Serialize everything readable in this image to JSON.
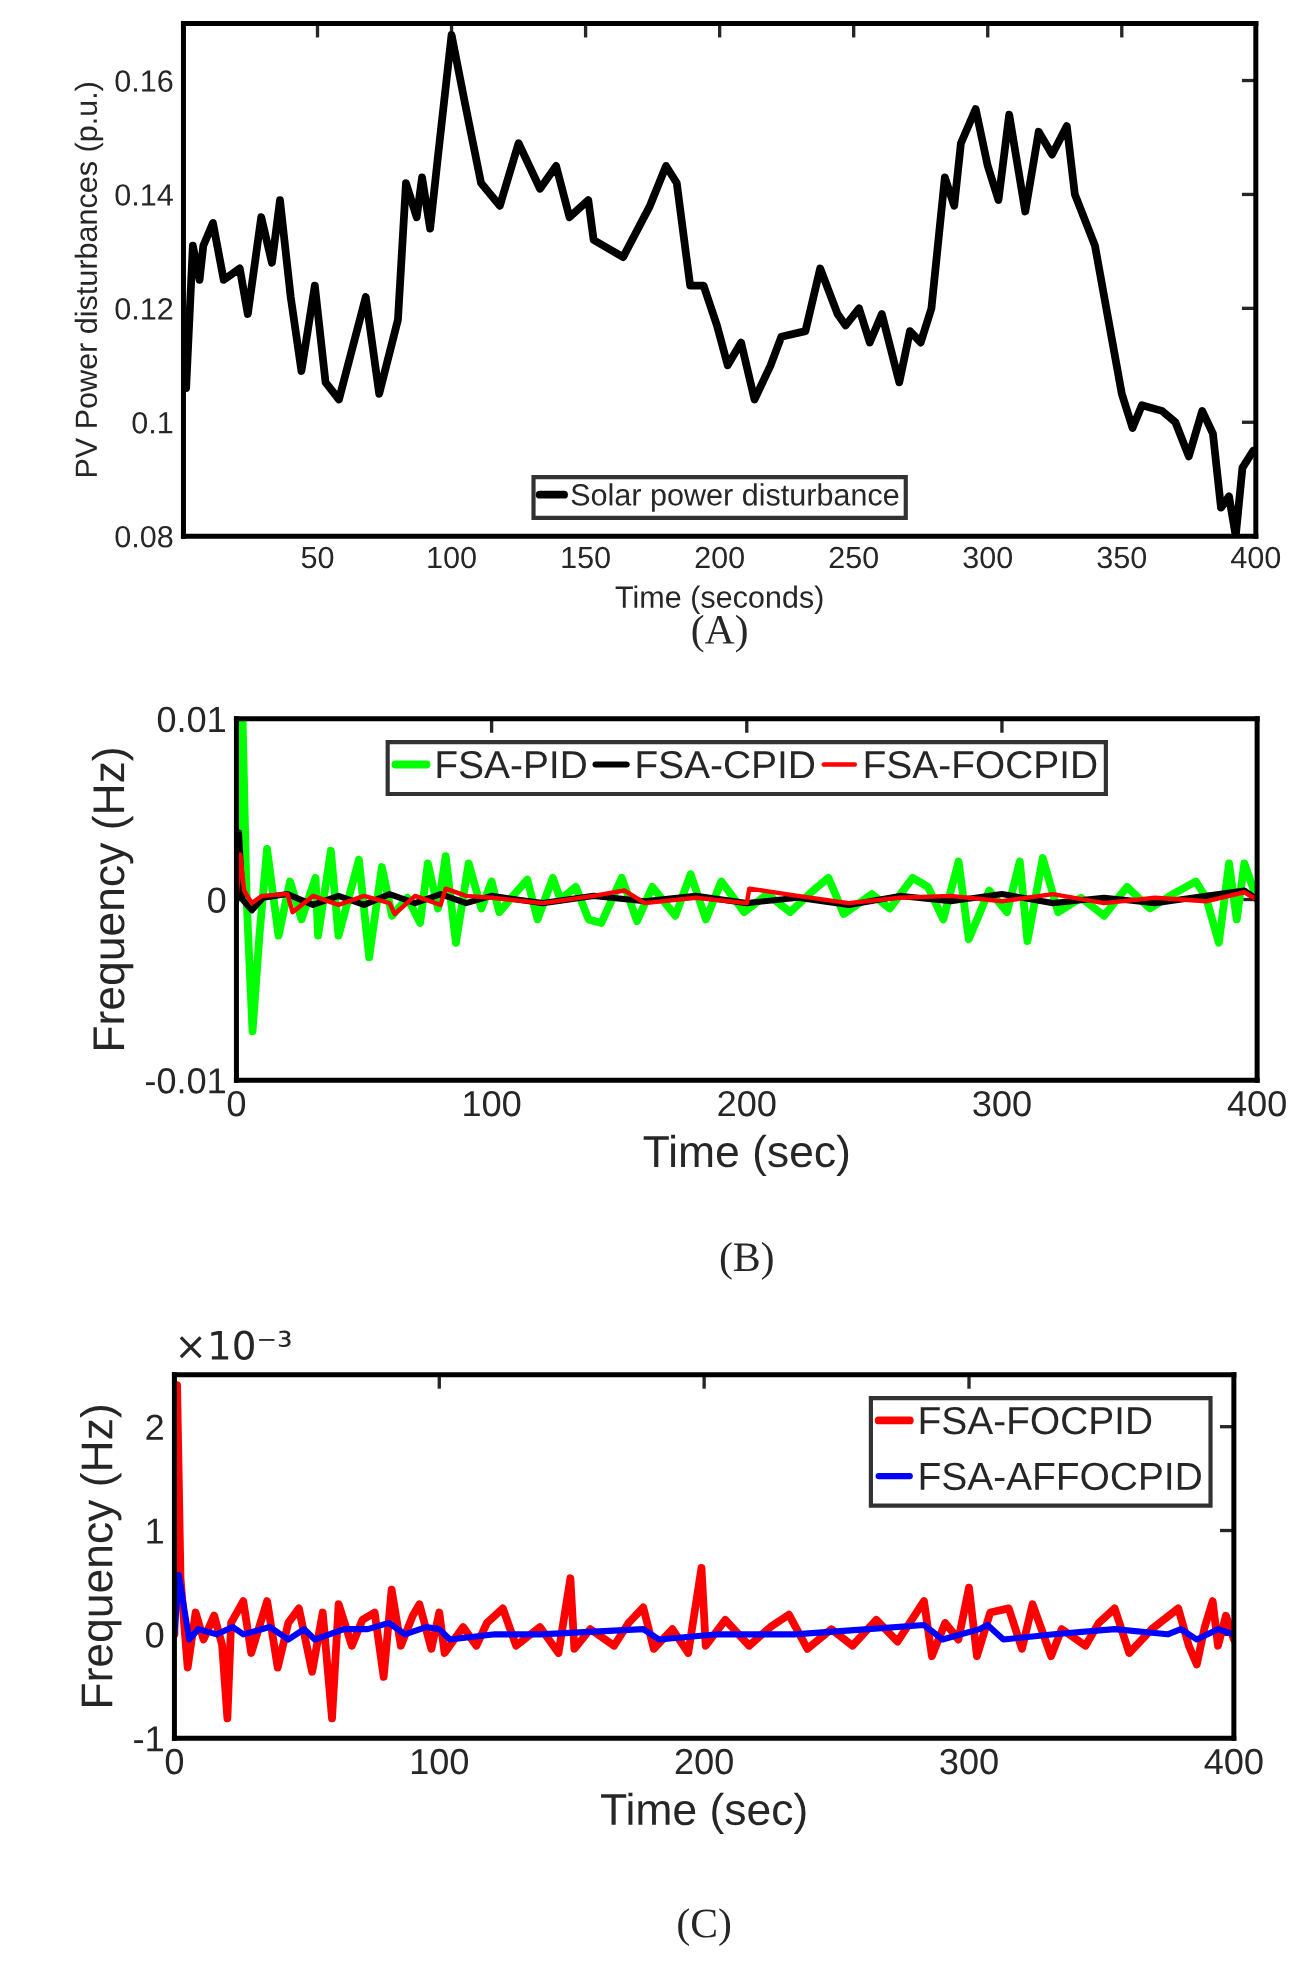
{
  "chart_data": [
    {
      "type": "line",
      "xlabel": "Time (seconds)",
      "ylabel": "PV Power disturbances (p.u.)",
      "xlim": [
        0,
        400
      ],
      "xticks": [
        50,
        100,
        150,
        200,
        250,
        300,
        350,
        400
      ],
      "ylim": [
        0.08,
        0.17
      ],
      "yticks": [
        0.08,
        0.1,
        0.12,
        0.14,
        0.16
      ],
      "legend": "bottom",
      "grid": false,
      "annotations": [
        "(A)"
      ],
      "series": [
        {
          "name": "Solar power disturbance",
          "color": "#000000",
          "x": [
            1,
            3.5,
            6,
            7.4,
            11,
            15,
            21,
            24,
            29,
            33,
            36,
            40,
            44,
            49,
            53,
            58,
            63,
            68,
            73,
            80,
            83,
            87,
            89,
            92,
            95,
            100,
            105,
            111,
            118,
            125,
            133,
            139,
            144,
            151,
            153,
            164,
            174,
            180,
            184,
            189,
            194,
            199,
            203,
            208,
            213,
            219,
            223,
            232,
            237.5,
            244,
            247,
            252,
            256,
            260.5,
            267,
            271,
            275,
            279,
            284,
            287.5,
            290,
            295.5,
            300,
            304,
            308,
            314,
            319,
            324,
            329.5,
            332.5,
            340,
            345,
            350,
            354,
            357.5,
            365,
            370,
            375,
            380,
            384,
            387,
            390,
            392.5,
            395,
            399
          ],
          "values": [
            0.106,
            0.131,
            0.125,
            0.131,
            0.135,
            0.125,
            0.127,
            0.119,
            0.136,
            0.128,
            0.139,
            0.122,
            0.109,
            0.124,
            0.107,
            0.104,
            0.113,
            0.122,
            0.105,
            0.118,
            0.142,
            0.136,
            0.143,
            0.134,
            0.147,
            0.168,
            0.156,
            0.142,
            0.138,
            0.149,
            0.141,
            0.145,
            0.136,
            0.139,
            0.132,
            0.129,
            0.138,
            0.145,
            0.142,
            0.124,
            0.124,
            0.117,
            0.11,
            0.114,
            0.104,
            0.11,
            0.115,
            0.116,
            0.127,
            0.119,
            0.117,
            0.12,
            0.114,
            0.119,
            0.107,
            0.116,
            0.114,
            0.12,
            0.143,
            0.138,
            0.149,
            0.155,
            0.145,
            0.139,
            0.154,
            0.137,
            0.151,
            0.147,
            0.152,
            0.14,
            0.131,
            0.118,
            0.105,
            0.099,
            0.103,
            0.102,
            0.1,
            0.094,
            0.102,
            0.098,
            0.085,
            0.087,
            0.08,
            0.092,
            0.095
          ]
        }
      ]
    },
    {
      "type": "line",
      "xlabel": "Time (sec)",
      "ylabel": "Frequency (Hz)",
      "xlim": [
        0,
        400
      ],
      "xticks": [
        0,
        100,
        200,
        300,
        400
      ],
      "ylim": [
        -0.01,
        0.01
      ],
      "yticks": [
        -0.01,
        0,
        0.01
      ],
      "legend": "top",
      "grid": false,
      "annotations": [
        "(B)"
      ],
      "series": [
        {
          "name": "FSA-PID",
          "color": "#00ff00",
          "x": [
            0,
            1.5,
            2.4,
            4,
            6.3,
            9,
            12,
            16.5,
            21,
            25.5,
            31,
            32,
            37,
            40,
            48,
            52,
            57,
            61,
            67,
            72,
            75,
            79,
            82,
            86,
            91,
            96,
            100,
            103,
            109,
            114,
            118,
            124,
            127,
            133,
            138,
            143,
            151,
            157,
            163,
            172,
            178,
            184,
            190,
            199,
            208,
            217,
            226,
            232,
            238,
            249,
            256,
            265,
            271,
            277,
            283,
            287,
            295,
            302,
            307,
            310,
            316,
            322,
            331,
            340,
            349,
            358,
            367,
            376,
            380,
            385,
            389,
            392,
            395,
            400
          ],
          "values": [
            0,
            0.01,
            0.01,
            0,
            -0.0073,
            -0.002,
            0.0028,
            -0.002,
            0.001,
            -0.0011,
            0.0012,
            -0.002,
            0.0027,
            -0.002,
            0.0022,
            -0.0032,
            0.0018,
            -0.0009,
            0.0001,
            -0.0013,
            0.002,
            -0.0005,
            0.0024,
            -0.0024,
            0.002,
            -0.0005,
            0.001,
            -0.0007,
            0.0003,
            0.0011,
            -0.0011,
            0.0012,
            0,
            0.0007,
            -0.0011,
            -0.0013,
            0.0012,
            -0.0012,
            0.0007,
            -0.0009,
            0.0014,
            -0.0011,
            0.001,
            -0.0007,
            0.0003,
            -0.0007,
            0.0005,
            0.0012,
            -0.0008,
            0.0003,
            -0.0005,
            0.0012,
            0.0007,
            -0.0011,
            0.0021,
            -0.0022,
            0.0005,
            -0.0007,
            0.0021,
            -0.0023,
            0.0023,
            -0.0007,
            0.0001,
            -0.0009,
            0.0007,
            -0.0005,
            0.0003,
            0.001,
            0.0001,
            -0.0024,
            0.002,
            -0.0011,
            0.002,
            0
          ]
        },
        {
          "name": "FSA-CPID",
          "color": "#000000",
          "x": [
            0,
            1,
            2.4,
            6,
            10.5,
            20,
            30,
            40,
            50,
            60,
            70,
            80,
            90,
            100,
            120,
            140,
            160,
            180,
            200,
            220,
            240,
            260,
            280,
            300,
            320,
            340,
            360,
            380,
            395,
            400
          ],
          "values": [
            0,
            0.0037,
            0,
            -0.0006,
            0.0001,
            0.0003,
            -0.0003,
            0.0002,
            -0.0003,
            0.0003,
            -0.0002,
            0.0003,
            -0.0002,
            0.0002,
            -0.0002,
            0.0002,
            -0.0001,
            0.0002,
            -0.0002,
            0.0001,
            -0.0003,
            0.0002,
            -0.0001,
            0.0003,
            -0.0002,
            0.0001,
            -0.0002,
            0.0002,
            0.0005,
            0
          ]
        },
        {
          "name": "FSA-FOCPID",
          "color": "#ff0000",
          "x": [
            0,
            1.5,
            3,
            6,
            10,
            20,
            22,
            30,
            40,
            50,
            60,
            62,
            70,
            80,
            82,
            90,
            100,
            120,
            140,
            152,
            160,
            180,
            200,
            201,
            220,
            240,
            260,
            280,
            300,
            320,
            340,
            360,
            380,
            395,
            400
          ],
          "values": [
            0,
            0.0025,
            0.0005,
            -0.0002,
            0.0002,
            0.0003,
            -0.0007,
            0.0002,
            -0.0003,
            0.0002,
            -0.0002,
            -0.0008,
            0.0002,
            -0.0003,
            0.0006,
            0.0002,
            0.0001,
            -0.0002,
            0.0002,
            0.0005,
            -0.0002,
            0.0001,
            -0.0002,
            0.0006,
            0.0002,
            -0.0002,
            0.0001,
            0.0002,
            -0.0001,
            0.0003,
            -0.0002,
            0.0001,
            -0.0001,
            0.0004,
            0
          ]
        }
      ]
    },
    {
      "type": "line",
      "xlabel": "Time (sec)",
      "ylabel": "Frequency (Hz)",
      "xlim": [
        0,
        400
      ],
      "xticks": [
        0,
        100,
        200,
        300,
        400
      ],
      "ylim": [
        -1,
        2.5
      ],
      "yticks": [
        -1,
        0,
        1,
        2
      ],
      "legend": "top right",
      "grid": false,
      "annotations": [
        "×10⁻³",
        "(C)"
      ],
      "series": [
        {
          "name": "FSA-FOCPID",
          "color": "#ff0000",
          "x": [
            0,
            1,
            2.3,
            5,
            8,
            11,
            15,
            18,
            20,
            21.4,
            26,
            29,
            35,
            39,
            43,
            47,
            52,
            56,
            59.5,
            62,
            67,
            71,
            75.6,
            79,
            82,
            85.5,
            90,
            92.5,
            97,
            100,
            102,
            109,
            114,
            118,
            124,
            129,
            138,
            145,
            149.5,
            151,
            157,
            166,
            171.5,
            177,
            181,
            188,
            194,
            199,
            200.6,
            208,
            217,
            225,
            232,
            239,
            248,
            256,
            265,
            273,
            283,
            286,
            291,
            296,
            300,
            303,
            308,
            315,
            320,
            324,
            331,
            335,
            344,
            349,
            355,
            360.5,
            369,
            379,
            383,
            386,
            389,
            392,
            394,
            397,
            400
          ],
          "values": [
            0,
            2.4,
            0.54,
            -0.32,
            0.21,
            -0.05,
            0.18,
            -0.1,
            -0.81,
            0.11,
            0.32,
            -0.18,
            0.32,
            -0.32,
            0.11,
            0.25,
            -0.36,
            0.21,
            -0.81,
            0.29,
            -0.11,
            0.14,
            0.21,
            -0.41,
            0.43,
            -0.11,
            0.18,
            0.29,
            -0.14,
            0.21,
            -0.18,
            0.07,
            -0.11,
            0.11,
            0.25,
            -0.11,
            0.07,
            -0.18,
            0.54,
            -0.14,
            0.05,
            -0.11,
            0.11,
            0.26,
            -0.14,
            0.05,
            -0.18,
            0.64,
            -0.11,
            0.14,
            -0.11,
            0.07,
            0.19,
            -0.14,
            0.05,
            -0.11,
            0.14,
            -0.07,
            0.32,
            -0.21,
            0.11,
            -0.05,
            0.45,
            -0.21,
            0.21,
            0.25,
            -0.14,
            0.29,
            -0.21,
            0.05,
            -0.11,
            0.11,
            0.25,
            -0.18,
            0.05,
            0.25,
            -0.11,
            -0.29,
            0.07,
            0.32,
            -0.11,
            0.18,
            -0.05
          ]
        },
        {
          "name": "FSA-AFFOCPID",
          "color": "#0000ff",
          "x": [
            0,
            1.7,
            3.7,
            5.6,
            9,
            16,
            22,
            26,
            36,
            43,
            49,
            53,
            64,
            73,
            81,
            87,
            95,
            100,
            104,
            121,
            138,
            177,
            183,
            205,
            234,
            262,
            283,
            290,
            304,
            307,
            313,
            332,
            355,
            375,
            380,
            386,
            394,
            400
          ],
          "values": [
            0,
            0.57,
            0.25,
            -0.05,
            0.05,
            0,
            0.07,
            0,
            0.07,
            -0.05,
            0.05,
            -0.05,
            0.05,
            0.05,
            0.11,
            0,
            0.07,
            0.05,
            -0.05,
            0,
            0,
            0.05,
            -0.05,
            0,
            0,
            0.05,
            0.09,
            -0.05,
            0.05,
            0.09,
            -0.05,
            0,
            0.05,
            0,
            0.05,
            -0.05,
            0.05,
            0
          ]
        }
      ]
    }
  ]
}
